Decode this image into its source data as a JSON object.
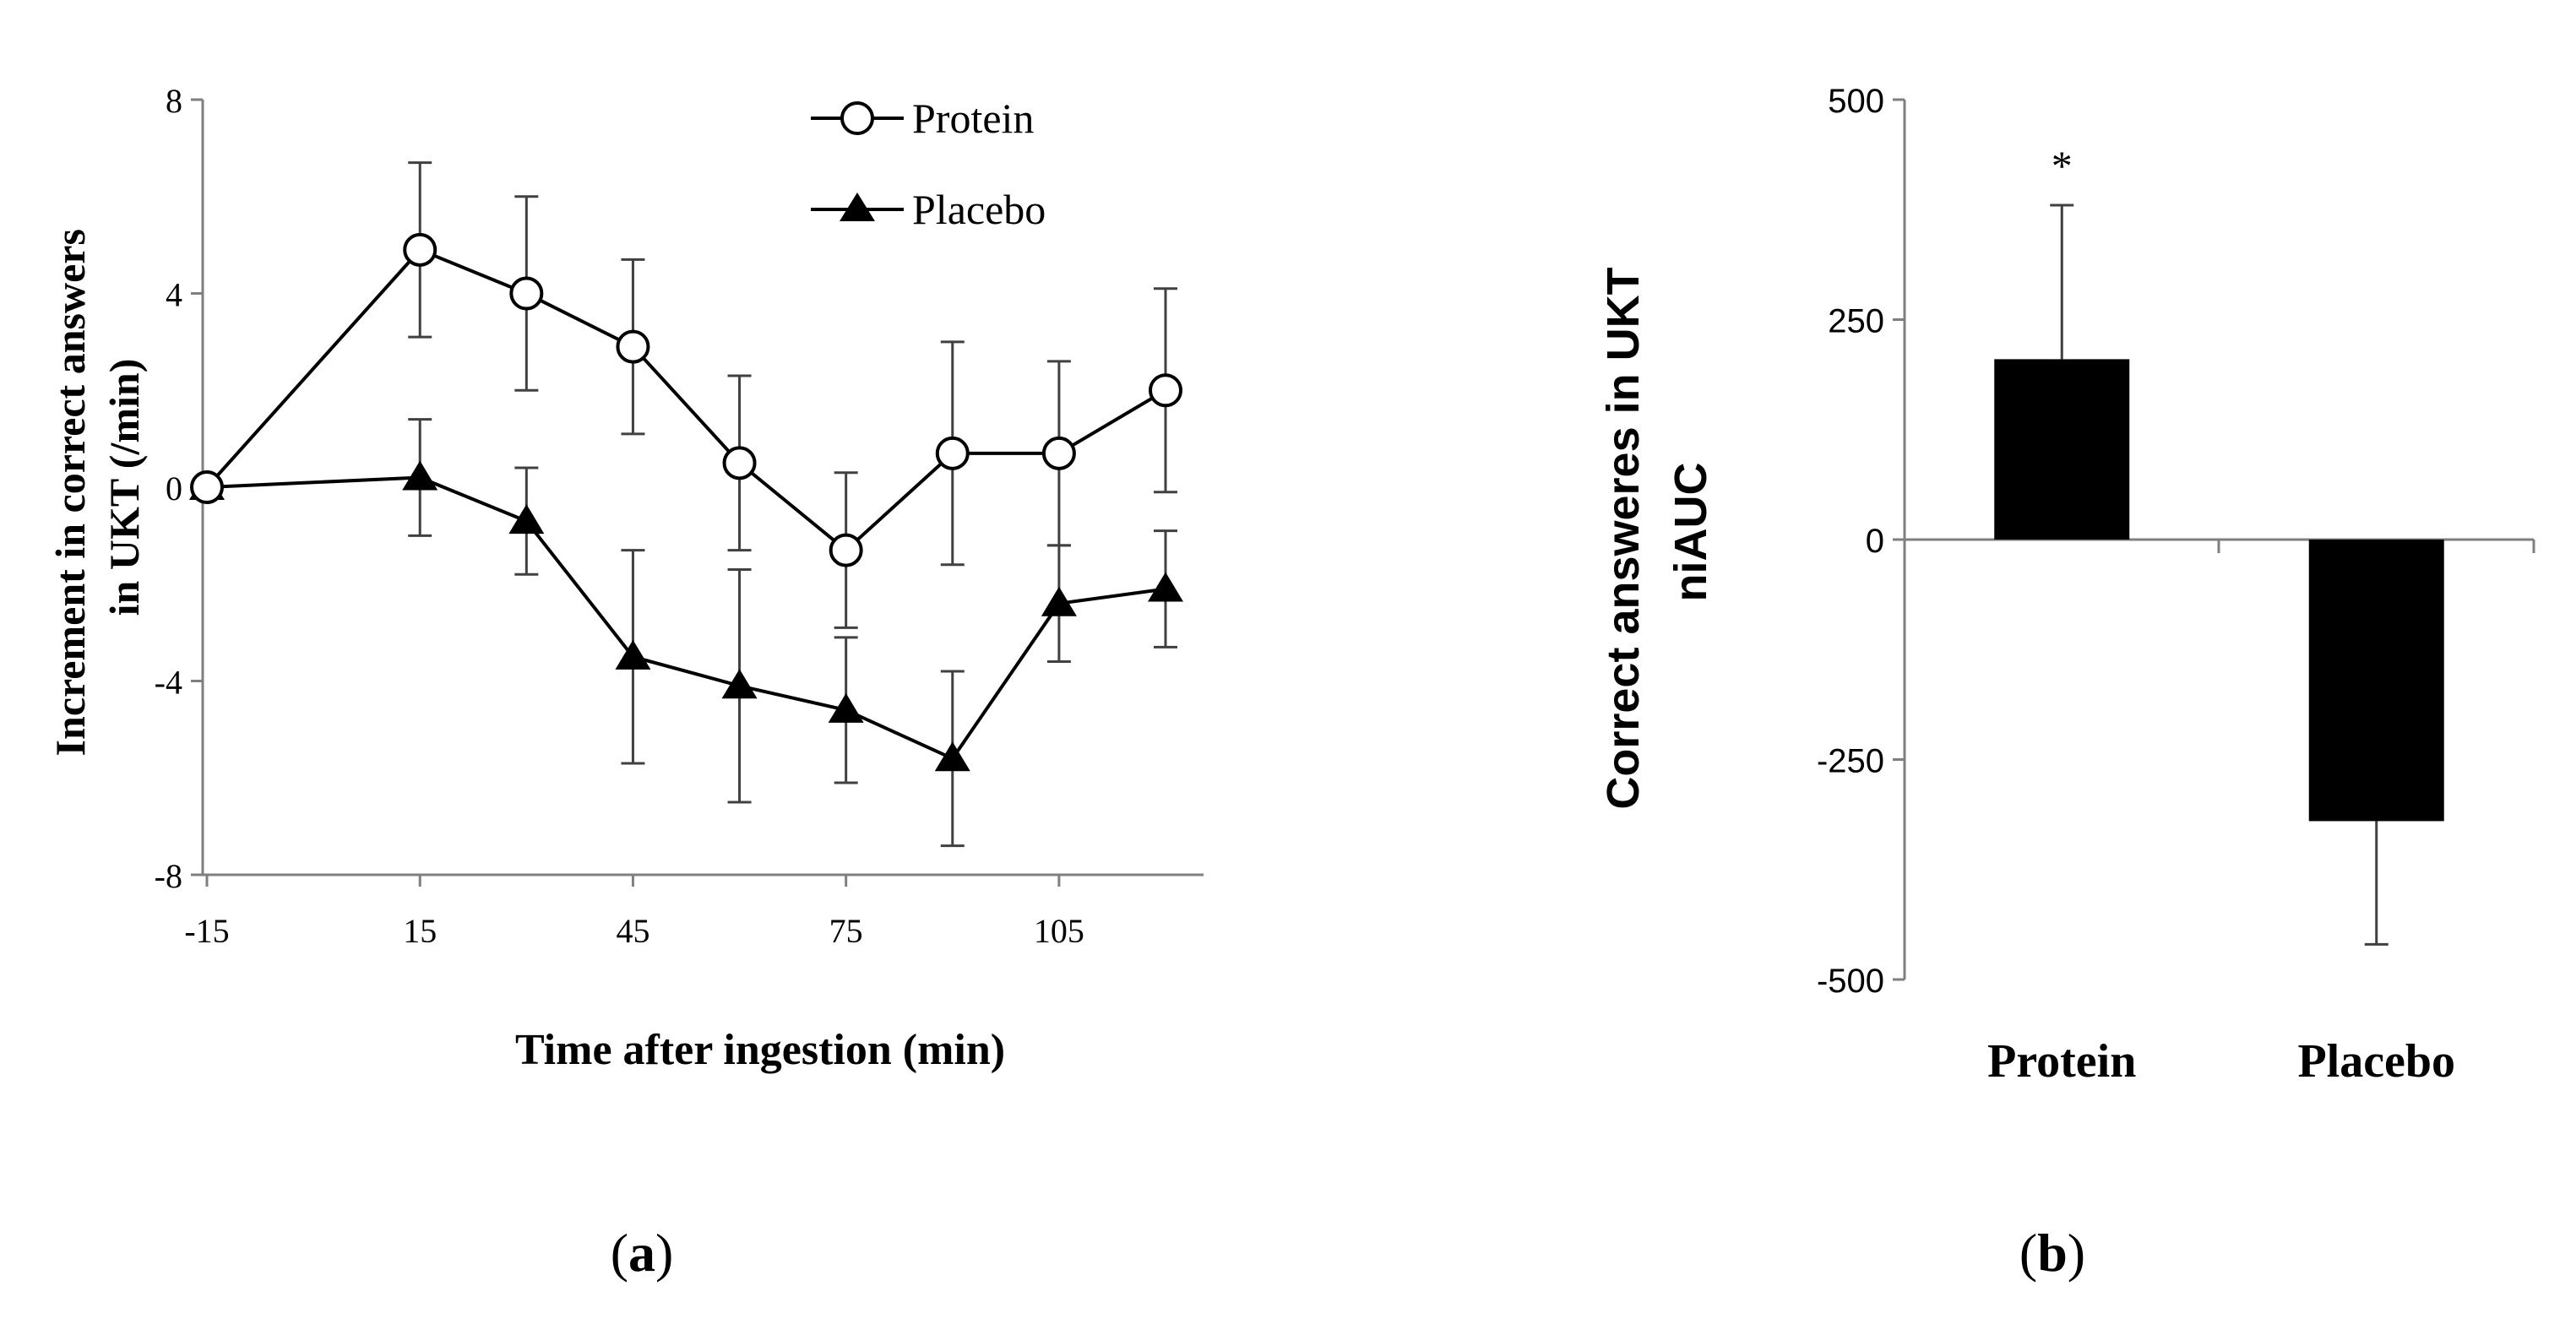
{
  "chart_data": [
    {
      "type": "line",
      "panel_label": "(a)",
      "title": "",
      "xlabel": "Time after ingestion (min)",
      "ylabel_lines": [
        "Increment in correct answers",
        "in UKT (/min)"
      ],
      "x": [
        -15,
        15,
        30,
        45,
        60,
        75,
        90,
        105,
        120
      ],
      "xticks": [
        -15,
        15,
        45,
        75,
        105
      ],
      "xtick_labels": [
        "-15",
        "15",
        "45",
        "75",
        "105"
      ],
      "xlim": [
        -15,
        120
      ],
      "yticks": [
        -8,
        -4,
        0,
        4,
        8
      ],
      "ytick_labels": [
        "-8",
        "-4",
        "0",
        "4",
        "8"
      ],
      "ylim": [
        -8,
        8
      ],
      "legend_position": "top-right",
      "series": [
        {
          "name": "Protein",
          "marker": "circle-open",
          "values": [
            0,
            4.9,
            4.0,
            2.9,
            0.5,
            -1.3,
            0.7,
            0.7,
            2.0
          ],
          "err_up": [
            0,
            1.8,
            2.0,
            1.8,
            1.8,
            1.6,
            2.3,
            1.9,
            2.1
          ],
          "err_down": [
            0,
            1.8,
            2.0,
            1.8,
            1.8,
            1.6,
            2.3,
            1.9,
            2.1
          ]
        },
        {
          "name": "Placebo",
          "marker": "triangle-filled",
          "values": [
            0,
            0.2,
            -0.7,
            -3.5,
            -4.1,
            -4.6,
            -5.6,
            -2.4,
            -2.1
          ],
          "err_up": [
            0,
            1.2,
            1.1,
            2.2,
            2.4,
            1.5,
            1.8,
            1.2,
            1.2
          ],
          "err_down": [
            0,
            1.2,
            1.1,
            2.2,
            2.4,
            1.5,
            1.8,
            1.2,
            1.2
          ]
        }
      ]
    },
    {
      "type": "bar",
      "panel_label": "(b)",
      "title": "",
      "xlabel": "",
      "ylabel_lines": [
        "Correct answeres in UKT",
        "niAUC"
      ],
      "categories": [
        "Protein",
        "Placebo"
      ],
      "values": [
        205,
        -320
      ],
      "err_up": [
        175,
        0
      ],
      "err_down": [
        0,
        140
      ],
      "significance": [
        "*",
        ""
      ],
      "yticks": [
        -500,
        -250,
        0,
        250,
        500
      ],
      "ytick_labels": [
        "-500",
        "-250",
        "0",
        "250",
        "500"
      ],
      "ylim": [
        -500,
        500
      ],
      "bar_color": "#000000"
    }
  ]
}
